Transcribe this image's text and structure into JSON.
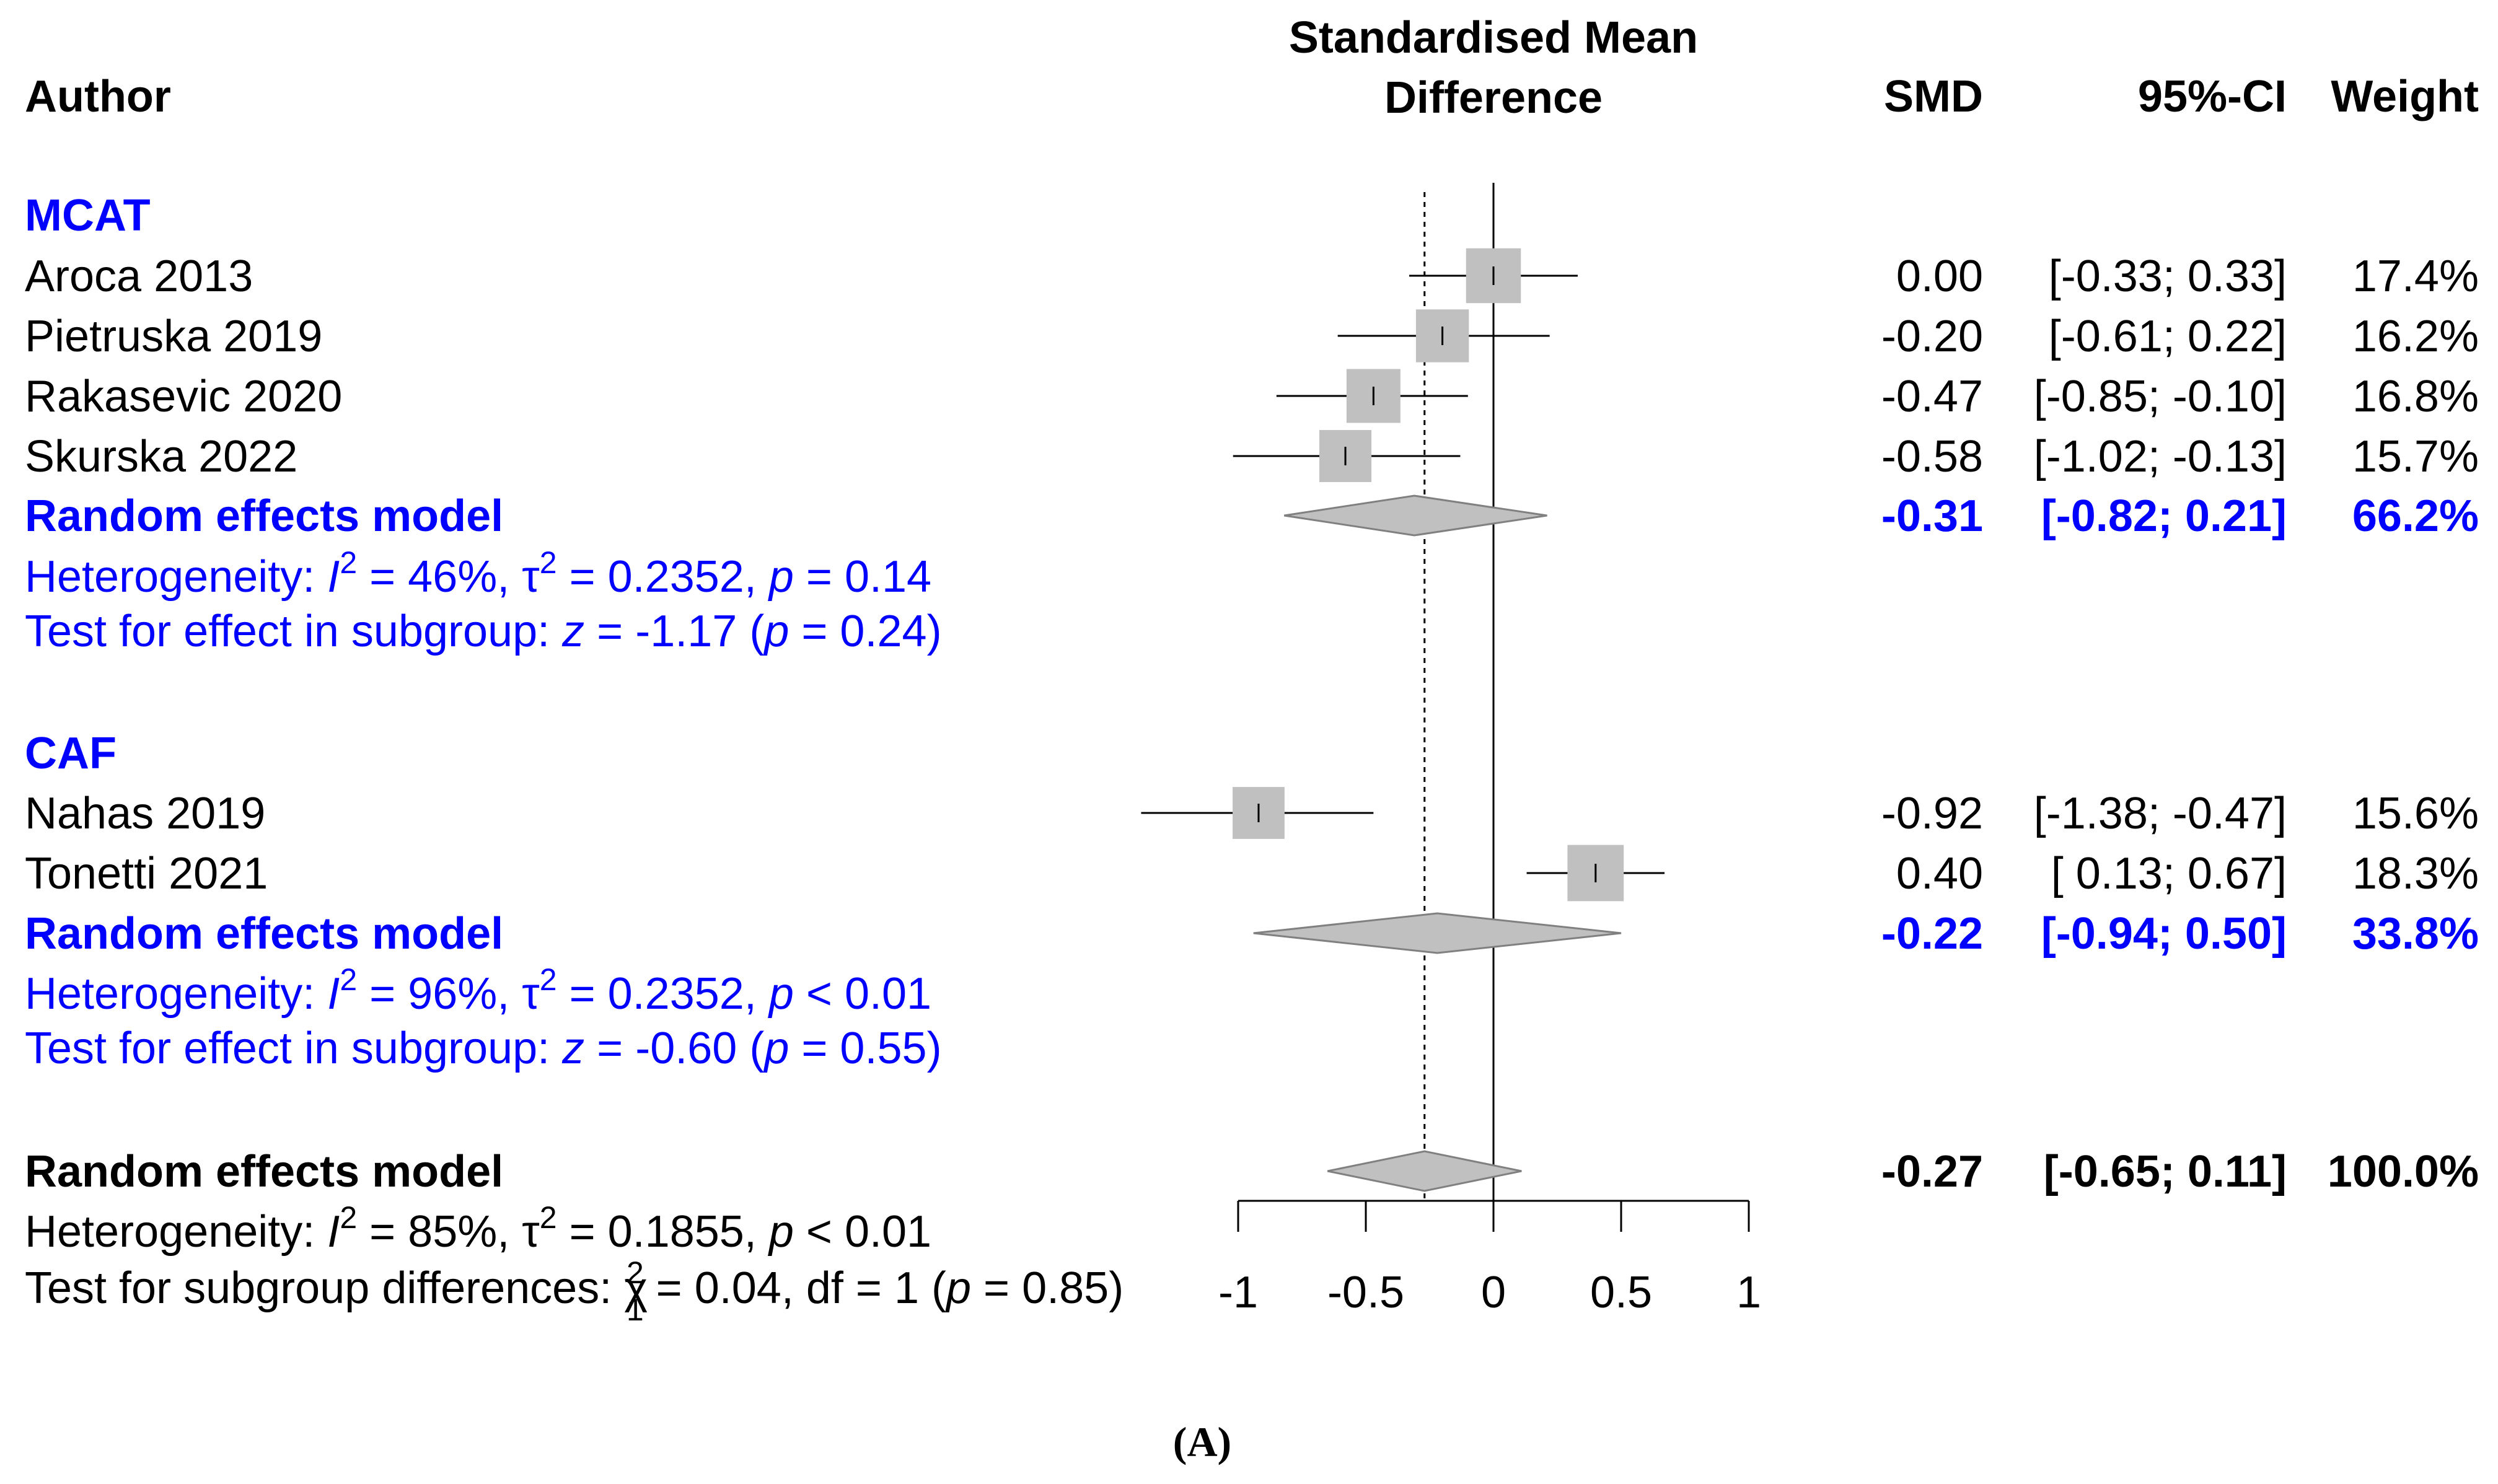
{
  "header": {
    "author": "Author",
    "plot_title_line1": "Standardised Mean",
    "plot_title_line2": "Difference",
    "smd": "SMD",
    "ci": "95%-CI",
    "weight": "Weight"
  },
  "colors": {
    "accent": "#0000ff",
    "box": "#c0c0c0",
    "text": "#000000"
  },
  "chart_data": {
    "type": "forest",
    "xaxis": {
      "ticks": [
        -1,
        -0.5,
        0,
        0.5,
        1
      ],
      "tick_labels": [
        "-1",
        "-0.5",
        "0",
        "0.5",
        "1"
      ],
      "range": [
        -1,
        1
      ]
    },
    "reference_line": 0,
    "overall_dashed_line": -0.27,
    "groups": [
      {
        "name": "MCAT",
        "studies": [
          {
            "author": "Aroca 2013",
            "smd": 0.0,
            "lo": -0.33,
            "hi": 0.33,
            "weight": 17.4,
            "smd_text": "0.00",
            "ci_text": "[-0.33;  0.33]",
            "weight_text": "17.4%"
          },
          {
            "author": "Pietruska 2019",
            "smd": -0.2,
            "lo": -0.61,
            "hi": 0.22,
            "weight": 16.2,
            "smd_text": "-0.20",
            "ci_text": "[-0.61;  0.22]",
            "weight_text": "16.2%"
          },
          {
            "author": "Rakasevic 2020",
            "smd": -0.47,
            "lo": -0.85,
            "hi": -0.1,
            "weight": 16.8,
            "smd_text": "-0.47",
            "ci_text": "[-0.85; -0.10]",
            "weight_text": "16.8%"
          },
          {
            "author": "Skurska 2022",
            "smd": -0.58,
            "lo": -1.02,
            "hi": -0.13,
            "weight": 15.7,
            "smd_text": "-0.58",
            "ci_text": "[-1.02; -0.13]",
            "weight_text": "15.7%"
          }
        ],
        "model": {
          "label": "Random effects model",
          "smd": -0.31,
          "lo": -0.82,
          "hi": 0.21,
          "smd_text": "-0.31",
          "ci_text": "[-0.82;  0.21]",
          "weight_text": "66.2%"
        },
        "heterogeneity": {
          "prefix": "Heterogeneity: ",
          "I": "I",
          "sup2": "2",
          "i2_value": " = 46%, ",
          "tau": "τ",
          "tau_value": " = 0.2352, ",
          "p": "p",
          "p_value": " = 0.14"
        },
        "effect_test": {
          "prefix": "Test for effect in subgroup: ",
          "z": "z",
          "z_value": " = -1.17 (",
          "p": "p",
          "p_value": " = 0.24)"
        }
      },
      {
        "name": "CAF",
        "studies": [
          {
            "author": "Nahas 2019",
            "smd": -0.92,
            "lo": -1.38,
            "hi": -0.47,
            "weight": 15.6,
            "smd_text": "-0.92",
            "ci_text": "[-1.38; -0.47]",
            "weight_text": "15.6%"
          },
          {
            "author": "Tonetti 2021",
            "smd": 0.4,
            "lo": 0.13,
            "hi": 0.67,
            "weight": 18.3,
            "smd_text": "0.40",
            "ci_text": "[ 0.13;  0.67]",
            "weight_text": "18.3%"
          }
        ],
        "model": {
          "label": "Random effects model",
          "smd": -0.22,
          "lo": -0.94,
          "hi": 0.5,
          "smd_text": "-0.22",
          "ci_text": "[-0.94;  0.50]",
          "weight_text": "33.8%"
        },
        "heterogeneity": {
          "prefix": "Heterogeneity: ",
          "I": "I",
          "sup2": "2",
          "i2_value": " = 96%, ",
          "tau": "τ",
          "tau_value": " = 0.2352, ",
          "p": "p",
          "p_value": " < 0.01"
        },
        "effect_test": {
          "prefix": "Test for effect in subgroup: ",
          "z": "z",
          "z_value": " = -0.60 (",
          "p": "p",
          "p_value": " = 0.55)"
        }
      }
    ],
    "overall": {
      "label": "Random effects model",
      "smd": -0.27,
      "lo": -0.65,
      "hi": 0.11,
      "smd_text": "-0.27",
      "ci_text": "[-0.65;  0.11]",
      "weight_text": "100.0%",
      "heterogeneity": {
        "prefix": "Heterogeneity: ",
        "I": "I",
        "sup2": "2",
        "i2_value": " = 85%, ",
        "tau": "τ",
        "tau_value": " = 0.1855, ",
        "p": "p",
        "p_value": " < 0.01"
      },
      "subgroup_test": {
        "prefix": "Test for subgroup differences: ",
        "chi": "χ",
        "sup": "2",
        "sub": "1",
        "value": " = 0.04, df = 1 (",
        "p": "p",
        "p_value": " = 0.85)"
      }
    }
  },
  "caption": "(A)"
}
